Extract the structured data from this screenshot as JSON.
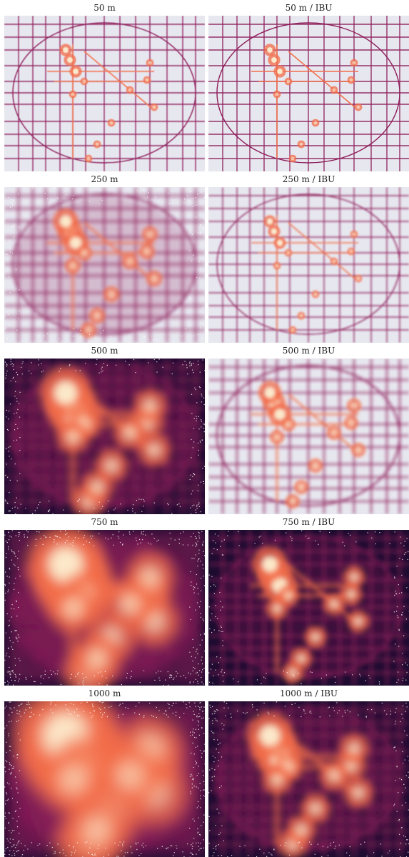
{
  "chart_data": {
    "type": "heatmap",
    "layout": "grid",
    "rows": 5,
    "cols": 2,
    "colormap": "rocket",
    "colors": {
      "background": "#e7e7ef",
      "low": "#1b0c2f",
      "mid": "#8d1d5a",
      "high": "#f36e4a",
      "peak": "#fcefd1"
    },
    "panels": [
      {
        "title": "50 m",
        "resolution_m": 50,
        "method": "raw"
      },
      {
        "title": "50 m / IBU",
        "resolution_m": 50,
        "method": "IBU"
      },
      {
        "title": "250 m",
        "resolution_m": 250,
        "method": "raw"
      },
      {
        "title": "250 m / IBU",
        "resolution_m": 250,
        "method": "IBU"
      },
      {
        "title": "500 m",
        "resolution_m": 500,
        "method": "raw"
      },
      {
        "title": "500 m / IBU",
        "resolution_m": 500,
        "method": "IBU"
      },
      {
        "title": "750 m",
        "resolution_m": 750,
        "method": "raw"
      },
      {
        "title": "750 m / IBU",
        "resolution_m": 750,
        "method": "IBU"
      },
      {
        "title": "1000 m",
        "resolution_m": 1000,
        "method": "raw"
      },
      {
        "title": "1000 m / IBU",
        "resolution_m": 1000,
        "method": "IBU"
      }
    ]
  }
}
